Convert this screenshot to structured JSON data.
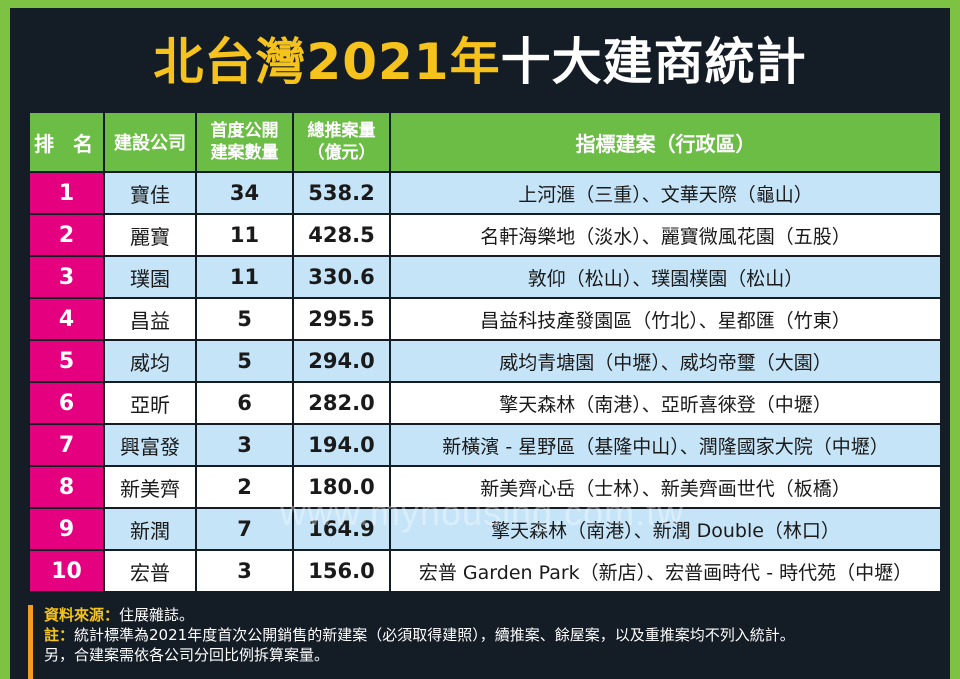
{
  "title": {
    "part_yellow_1": "北台灣",
    "part_yellow_2": "2021年",
    "part_white": "十大建商統計"
  },
  "colors": {
    "accent_green": "#6cbd45",
    "rank_pink": "#e4007f",
    "row_blue": "#c6e4f7",
    "title_yellow": "#f6c21c"
  },
  "watermark": "www.myhousing.com.tw",
  "chart_data": {
    "type": "table",
    "title": "北台灣2021年十大建商統計",
    "columns": [
      "排 名",
      "建設公司",
      "首度公開建案數量",
      "總推案量（億元）",
      "指標建案（行政區）"
    ],
    "column_lines": {
      "count": [
        "首度公開",
        "建案數量"
      ],
      "volume": [
        "總推案量",
        "（億元）"
      ]
    },
    "rows": [
      {
        "rank": "1",
        "company": "寶佳",
        "count": "34",
        "volume": "538.2",
        "projects": "上河滙（三重）、文華天際（龜山）"
      },
      {
        "rank": "2",
        "company": "麗寶",
        "count": "11",
        "volume": "428.5",
        "projects": "名軒海樂地（淡水）、麗寶微風花園（五股）"
      },
      {
        "rank": "3",
        "company": "璞園",
        "count": "11",
        "volume": "330.6",
        "projects": "敦仰（松山）、璞園樸園（松山）"
      },
      {
        "rank": "4",
        "company": "昌益",
        "count": "5",
        "volume": "295.5",
        "projects": "昌益科技產發園區（竹北）、星都匯（竹東）"
      },
      {
        "rank": "5",
        "company": "威均",
        "count": "5",
        "volume": "294.0",
        "projects": "威均青塘園（中壢）、威均帝璽（大園）"
      },
      {
        "rank": "6",
        "company": "亞昕",
        "count": "6",
        "volume": "282.0",
        "projects": "擎天森林（南港）、亞昕喜徠登（中壢）"
      },
      {
        "rank": "7",
        "company": "興富發",
        "count": "3",
        "volume": "194.0",
        "projects": "新橫濱 - 星野區（基隆中山）、潤隆國家大院（中壢）"
      },
      {
        "rank": "8",
        "company": "新美齊",
        "count": "2",
        "volume": "180.0",
        "projects": "新美齊心岳（士林）、新美齊画世代（板橋）"
      },
      {
        "rank": "9",
        "company": "新潤",
        "count": "7",
        "volume": "164.9",
        "projects": "擎天森林（南港）、新潤 Double（林口）"
      },
      {
        "rank": "10",
        "company": "宏普",
        "count": "3",
        "volume": "156.0",
        "projects": "宏普 Garden Park（新店）、宏普画時代 - 時代苑（中壢）"
      }
    ]
  },
  "notes": {
    "source_label": "資料來源：",
    "source_text": "住展雜誌。",
    "note_label": "註：",
    "note_text": "統計標準為2021年度首次公開銷售的新建案（必須取得建照），續推案、餘屋案，以及重推案均不列入統計。",
    "note_text_2": "另，合建案需依各公司分回比例拆算案量。"
  }
}
